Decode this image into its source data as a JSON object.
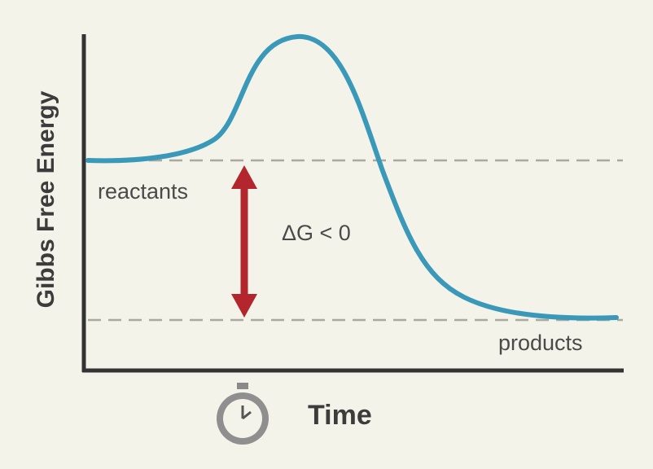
{
  "diagram": {
    "y_axis_label": "Gibbs Free Energy",
    "x_axis_label": "Time",
    "reactants_label": "reactants",
    "products_label": "products",
    "delta_label": "ΔG < 0"
  }
}
